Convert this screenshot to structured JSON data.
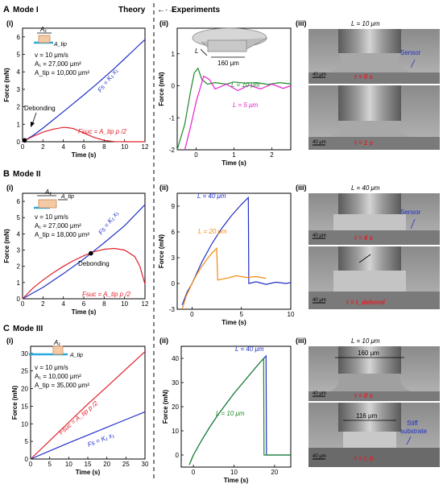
{
  "header": {
    "theory": "Theory",
    "experiments": "Experiments"
  },
  "rows": [
    {
      "letter": "A",
      "mode": "Mode I"
    },
    {
      "letter": "B",
      "mode": "Mode II"
    },
    {
      "letter": "C",
      "mode": "Mode III"
    }
  ],
  "subpanel_labels": [
    "(i)",
    "(ii)",
    "(iii)"
  ],
  "units": {
    "force": "Force (mN)",
    "time": "Time (s)"
  },
  "params": {
    "A": [
      "v = 10 μm/s",
      "A₁ = 27,000 μm²",
      "A_tip = 10,000 μm²"
    ],
    "B": [
      "v = 10 μm/s",
      "A₁ = 27,000 μm²",
      "A_tip = 18,000 μm²"
    ],
    "C": [
      "v = 10 μm/s",
      "A₁ = 10,000 μm²",
      "A_tip = 35,000 μm²"
    ]
  },
  "annotations": {
    "debonding": "Debonding",
    "fs": "Fs = K₁ x₁",
    "fsuc": "Fsuc = A_tip p /2",
    "L_label": "L",
    "dim_160": "160 μm",
    "dim_116": "116 μm",
    "sensor": "Sensor",
    "stiff1": "Stiff",
    "stiff2": "substrate",
    "scale40": "40 μm",
    "L10": "L = 10 μm",
    "L40": "L = 40 μm",
    "t0": "t = 0 s",
    "t1": "t = 1 s",
    "t4": "t = 4 s",
    "tdeb": "t = t_debond",
    "tb": "t = t_b",
    "A1": "A₁",
    "Atip": "A_tip"
  },
  "colors": {
    "blue": "#1f2fc8",
    "red": "#e0202a",
    "green": "#1e8a2a",
    "magenta": "#e81ecf",
    "orange": "#f08a10",
    "cyan": "#29a9e0"
  },
  "chart_data": [
    {
      "id": "A-i",
      "type": "line",
      "xlim": [
        0,
        12
      ],
      "ylim": [
        0,
        6.5
      ],
      "xticks": [
        0,
        2,
        4,
        6,
        8,
        10,
        12
      ],
      "yticks": [
        0,
        1,
        2,
        3,
        4,
        5,
        6
      ],
      "series": [
        {
          "name": "Fs = K₁ x₁",
          "color": "blue",
          "x": [
            0,
            1,
            2,
            3,
            4,
            5,
            6,
            7,
            8,
            9,
            10,
            11,
            12
          ],
          "y": [
            0,
            0.35,
            0.78,
            1.25,
            1.72,
            2.2,
            2.68,
            3.17,
            3.68,
            4.2,
            4.75,
            5.3,
            5.85
          ]
        },
        {
          "name": "Fsuc = A_tip p /2",
          "color": "red",
          "x": [
            0,
            1,
            2,
            3,
            4,
            4.5,
            5,
            6,
            7,
            8,
            9,
            10,
            11,
            12
          ],
          "y": [
            0,
            0.3,
            0.55,
            0.72,
            0.82,
            0.8,
            0.75,
            0.5,
            0.25,
            0.08,
            0.01,
            0,
            0,
            0
          ]
        }
      ],
      "point": {
        "x": 0.2,
        "y": 0.08
      }
    },
    {
      "id": "A-ii",
      "type": "line",
      "xlim": [
        -0.5,
        2.5
      ],
      "ylim": [
        -2,
        1.8
      ],
      "xticks": [
        0,
        1,
        2
      ],
      "yticks": [
        -2,
        -1,
        0,
        1
      ],
      "series": [
        {
          "name": "L = 10 μm",
          "color": "green",
          "x": [
            -0.5,
            -0.3,
            -0.15,
            -0.05,
            0.05,
            0.15,
            0.3,
            0.5,
            0.8,
            1.0,
            1.3,
            1.6,
            1.9,
            2.2,
            2.5
          ],
          "y": [
            -2,
            -1.2,
            -0.2,
            0.4,
            0.55,
            0.2,
            0.05,
            0.1,
            0.05,
            0.12,
            0.08,
            0.1,
            0.04,
            0.1,
            0.06
          ]
        },
        {
          "name": "L = 5 μm",
          "color": "magenta",
          "x": [
            -0.3,
            -0.15,
            0,
            0.1,
            0.2,
            0.35,
            0.5,
            0.8,
            1.1,
            1.4,
            1.7,
            2.0,
            2.3,
            2.5
          ],
          "y": [
            -2,
            -1.3,
            -0.5,
            -0.1,
            0.3,
            0.2,
            -0.1,
            0.05,
            -0.15,
            0.02,
            -0.1,
            0.05,
            -0.08,
            0.0
          ]
        }
      ]
    },
    {
      "id": "B-i",
      "type": "line",
      "xlim": [
        0,
        12
      ],
      "ylim": [
        0,
        6.5
      ],
      "xticks": [
        0,
        2,
        4,
        6,
        8,
        10,
        12
      ],
      "yticks": [
        0,
        1,
        2,
        3,
        4,
        5,
        6
      ],
      "series": [
        {
          "name": "Fs = K₁ x₁",
          "color": "blue",
          "x": [
            0,
            2,
            4,
            6,
            6.7,
            8,
            10,
            12
          ],
          "y": [
            0,
            0.7,
            1.55,
            2.45,
            2.8,
            3.45,
            4.5,
            5.8
          ]
        },
        {
          "name": "Fsuc = A_tip p /2",
          "color": "red",
          "x": [
            0,
            1,
            2,
            3,
            4,
            5,
            6,
            7,
            8,
            9,
            10,
            11,
            11.5,
            12
          ],
          "y": [
            0,
            0.65,
            1.15,
            1.6,
            2.0,
            2.35,
            2.65,
            2.9,
            3.05,
            3.1,
            3.0,
            2.6,
            2.0,
            0.9
          ]
        }
      ],
      "point": {
        "x": 6.7,
        "y": 2.8
      }
    },
    {
      "id": "B-ii",
      "type": "line",
      "xlim": [
        -1.5,
        10
      ],
      "ylim": [
        -3,
        10.5
      ],
      "xticks": [
        0,
        5,
        10
      ],
      "yticks": [
        -3,
        0,
        3,
        6,
        9
      ],
      "series": [
        {
          "name": "L = 40 μm",
          "color": "blue",
          "x": [
            -1,
            -0.5,
            0,
            1,
            2,
            3,
            4,
            5,
            5.7,
            5.75,
            6.5,
            7.5,
            8.5,
            9.5,
            10
          ],
          "y": [
            -2.5,
            -1,
            0,
            2.5,
            4.6,
            6.4,
            7.9,
            9.2,
            10.0,
            0.0,
            0.2,
            -0.1,
            0.15,
            0,
            0.1
          ]
        },
        {
          "name": "L = 20 μm",
          "color": "orange",
          "x": [
            -1,
            -0.6,
            0,
            0.5,
            1,
            1.5,
            2,
            2.5,
            2.6,
            3.5,
            4.5,
            5.5,
            6.5,
            7.5
          ],
          "y": [
            -3,
            -1.5,
            0,
            1.1,
            2.0,
            2.8,
            3.5,
            4.1,
            0.4,
            0.6,
            0.9,
            0.7,
            0.8,
            0.6
          ]
        }
      ]
    },
    {
      "id": "C-i",
      "type": "line",
      "xlim": [
        0,
        30
      ],
      "ylim": [
        0,
        32
      ],
      "xticks": [
        0,
        5,
        10,
        15,
        20,
        25,
        30
      ],
      "yticks": [
        0,
        5,
        10,
        15,
        20,
        25,
        30
      ],
      "series": [
        {
          "name": "Fsuc = A_tip p /2",
          "color": "red",
          "x": [
            0,
            5,
            10,
            15,
            20,
            25,
            30
          ],
          "y": [
            0,
            5.2,
            10.4,
            15.6,
            20.5,
            25.5,
            30.5
          ]
        },
        {
          "name": "Fs = K₁ x₁",
          "color": "blue",
          "x": [
            0,
            5,
            10,
            15,
            20,
            25,
            30
          ],
          "y": [
            0,
            2.3,
            4.6,
            6.8,
            9.0,
            11.2,
            13.4
          ]
        }
      ]
    },
    {
      "id": "C-ii",
      "type": "line",
      "xlim": [
        -3,
        24
      ],
      "ylim": [
        -5,
        45
      ],
      "xticks": [
        0,
        10,
        20
      ],
      "yticks": [
        0,
        10,
        20,
        30,
        40
      ],
      "series": [
        {
          "name": "L = 40 μm",
          "color": "blue",
          "x": [
            -1,
            0,
            2,
            4,
            6,
            8,
            10,
            12,
            14,
            16,
            17.9,
            18,
            20,
            24
          ],
          "y": [
            -4,
            0,
            6,
            11.5,
            16.5,
            21,
            25.5,
            29.5,
            33.5,
            37.5,
            41,
            0,
            0,
            0
          ]
        },
        {
          "name": "L = 10 μm",
          "color": "green",
          "x": [
            -1,
            0,
            2,
            4,
            6,
            8,
            10,
            12,
            14,
            16,
            17.3,
            17.4,
            20,
            24
          ],
          "y": [
            -4,
            0,
            6,
            11.5,
            16.5,
            21,
            25.5,
            29.5,
            33.5,
            37.5,
            40,
            0,
            0,
            0
          ]
        }
      ]
    }
  ]
}
